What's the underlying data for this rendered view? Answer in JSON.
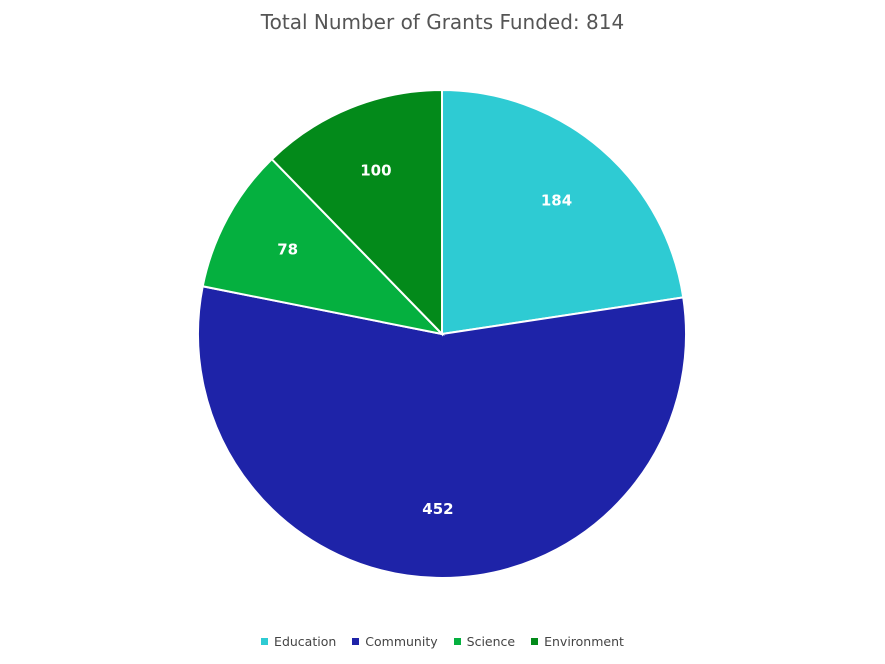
{
  "chart_data": {
    "type": "pie",
    "title": "Total Number of Grants Funded: 814",
    "categories": [
      "Education",
      "Community",
      "Science",
      "Environment"
    ],
    "values": [
      184,
      452,
      78,
      100
    ],
    "colors": [
      "#2ecbd3",
      "#1e23a8",
      "#05b03f",
      "#038a1a"
    ],
    "data_labels": [
      "184",
      "452",
      "78",
      "100"
    ],
    "start_angle_deg": 0,
    "direction": "clockwise",
    "legend_position": "bottom"
  }
}
